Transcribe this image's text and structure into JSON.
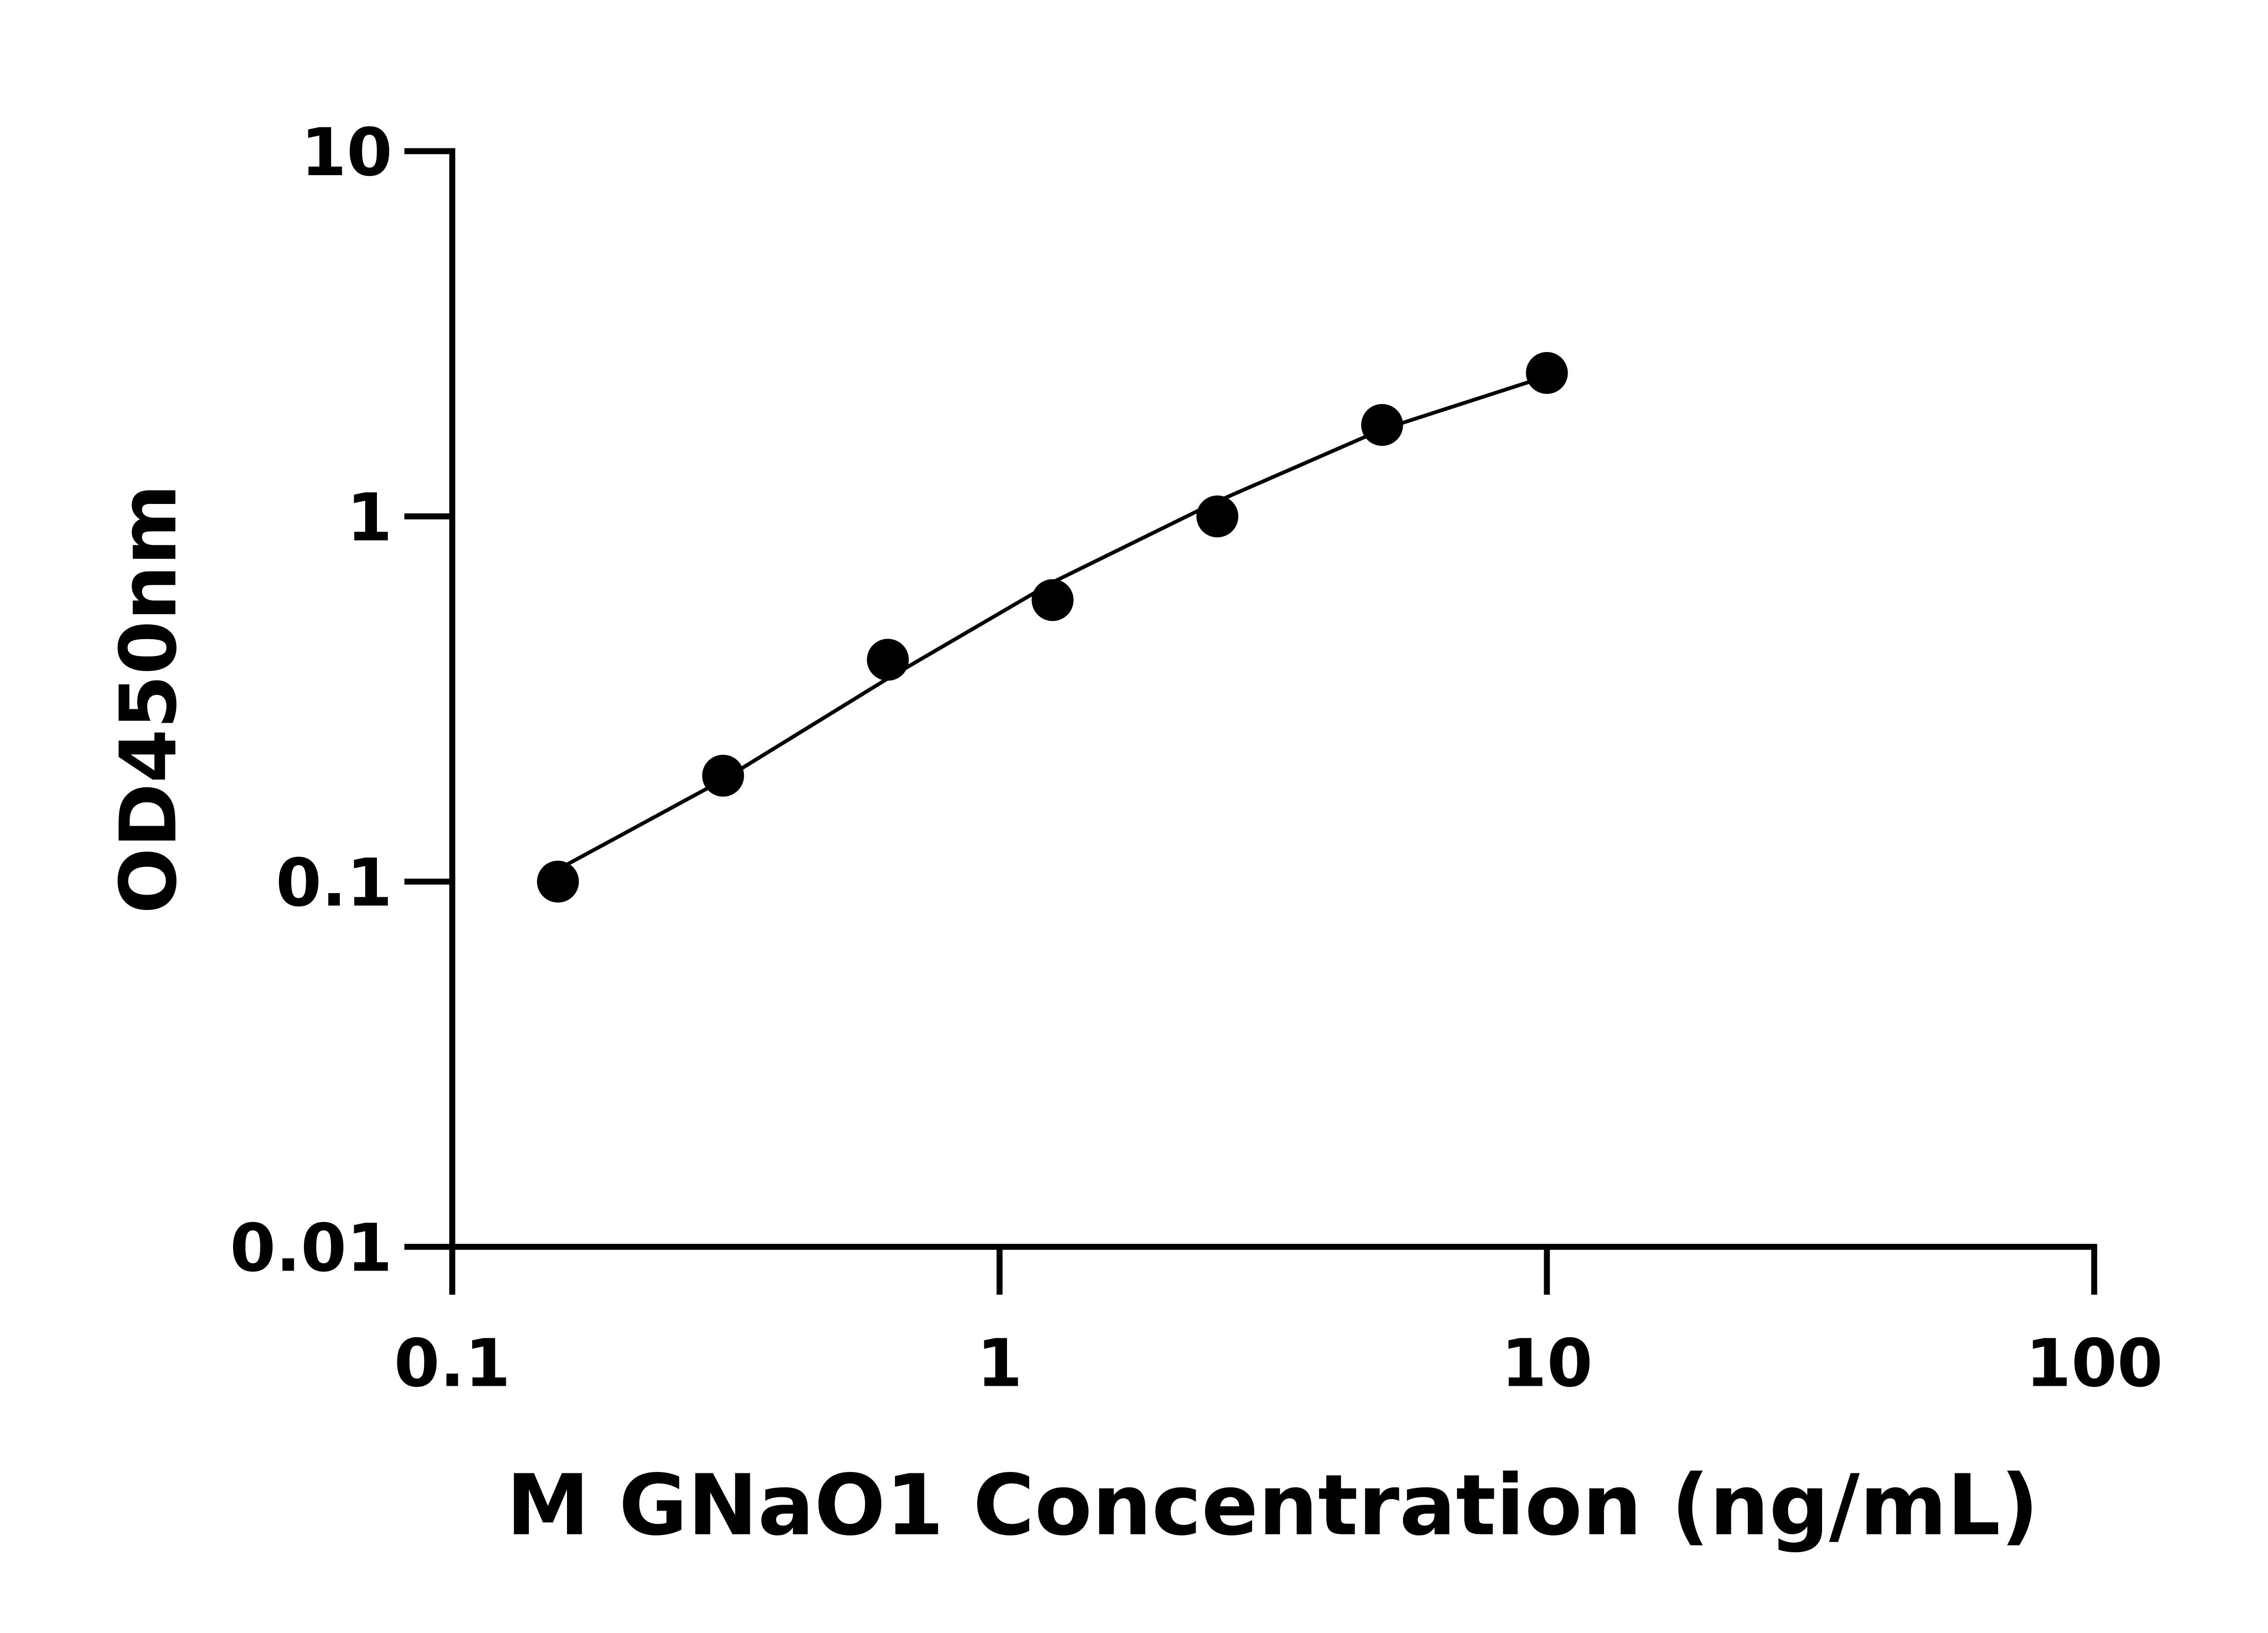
{
  "chart_data": {
    "type": "scatter",
    "x_label": "M GNaO1 Concentration (ng/mL)",
    "y_label": "OD450nm",
    "x": [
      0.156,
      0.3125,
      0.625,
      1.25,
      2.5,
      5,
      10
    ],
    "series": [
      {
        "style": "markers",
        "color": "#000000",
        "values": [
          0.1,
          0.195,
          0.405,
          0.59,
          1.0,
          1.78,
          2.47
        ]
      },
      {
        "style": "line",
        "color": "#000000",
        "values": [
          0.108,
          0.19,
          0.36,
          0.66,
          1.1,
          1.73,
          2.42
        ]
      }
    ],
    "x_log": true,
    "y_log": true,
    "xlim": [
      0.1,
      100
    ],
    "xticks": [
      0.1,
      1,
      10,
      100
    ],
    "ylim": [
      0.01,
      10
    ],
    "yticks": [
      0.01,
      0.1,
      1,
      10
    ]
  }
}
